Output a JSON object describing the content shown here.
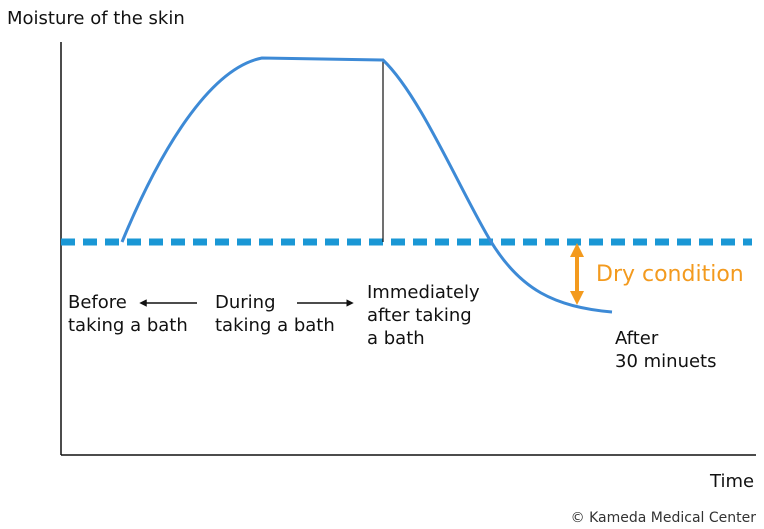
{
  "axes": {
    "y_label": "Moisture of the skin",
    "x_label": "Time"
  },
  "labels": [
    {
      "lines": [
        "Before",
        "taking a bath"
      ]
    },
    {
      "lines": [
        "During",
        "taking a bath"
      ]
    },
    {
      "lines": [
        "Immediately",
        "after taking",
        "a bath"
      ]
    },
    {
      "lines": [
        "After",
        "30 minuets"
      ]
    }
  ],
  "annotation": "Dry condition",
  "credit": "© Kameda Medical Center"
}
